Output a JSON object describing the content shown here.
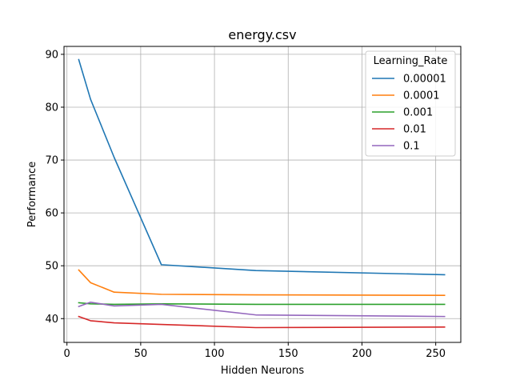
{
  "chart_data": {
    "type": "line",
    "title": "energy.csv",
    "xlabel": "Hidden Neurons",
    "ylabel": "Performance",
    "xlim": [
      -2,
      267
    ],
    "ylim": [
      35.5,
      91.5
    ],
    "xticks": [
      0,
      50,
      100,
      150,
      200,
      250
    ],
    "yticks": [
      40,
      50,
      60,
      70,
      80,
      90
    ],
    "grid": true,
    "legend": {
      "title": "Learning_Rate",
      "placement": "upper right"
    },
    "x": [
      8,
      16,
      32,
      64,
      128,
      256
    ],
    "series": [
      {
        "name": "0.00001",
        "color": "#1f77b4",
        "values": [
          89.0,
          81.5,
          70.5,
          50.2,
          49.1,
          48.3
        ]
      },
      {
        "name": "0.0001",
        "color": "#ff7f0e",
        "values": [
          49.2,
          46.8,
          45.0,
          44.6,
          44.5,
          44.4
        ]
      },
      {
        "name": "0.001",
        "color": "#2ca02c",
        "values": [
          43.0,
          42.8,
          42.7,
          42.8,
          42.7,
          42.7
        ]
      },
      {
        "name": "0.01",
        "color": "#d62728",
        "values": [
          40.4,
          39.6,
          39.2,
          38.9,
          38.3,
          38.4
        ]
      },
      {
        "name": "0.1",
        "color": "#9467bd",
        "values": [
          42.3,
          43.1,
          42.4,
          42.7,
          40.7,
          40.4
        ]
      }
    ]
  }
}
